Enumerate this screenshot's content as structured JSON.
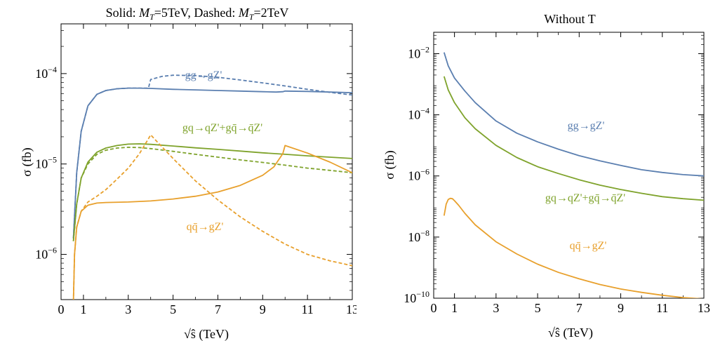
{
  "chart_data": [
    {
      "type": "line",
      "title": "Solid: M_T=5TeV, Dashed: M_T=2TeV",
      "title_parts": [
        "Solid: ",
        "M",
        "T",
        "=5TeV, Dashed: ",
        "M",
        "T",
        "=2TeV"
      ],
      "xlabel": "√ŝ (TeV)",
      "ylabel": "σ (fb)",
      "xlim": [
        0,
        13
      ],
      "ylim_log10": [
        -6.5,
        -3.45
      ],
      "yscale": "log",
      "x_ticks": [
        0,
        1,
        3,
        5,
        7,
        9,
        11,
        13
      ],
      "y_ticks": [
        {
          "exp": -6,
          "label": "10",
          "sup": "−6"
        },
        {
          "exp": -5,
          "label": "10",
          "sup": "−5"
        },
        {
          "exp": -4,
          "label": "10",
          "sup": "−4"
        }
      ],
      "annotations": [
        {
          "series": "gg",
          "text": "gg→gZ'",
          "color": "#5b7fb0"
        },
        {
          "series": "gq",
          "text": "gq→qZ'+gq̄→q̄Z'",
          "color": "#7fa32c"
        },
        {
          "series": "qq",
          "text": "qq̄→gZ'",
          "color": "#e8a02c"
        }
      ],
      "series": [
        {
          "name": "gg→gZ'",
          "style": "solid",
          "color": "#5b7fb0",
          "x": [
            0.55,
            0.7,
            0.9,
            1.2,
            1.6,
            2.0,
            2.5,
            3.0,
            3.5,
            4.0,
            5.0,
            6.0,
            7.0,
            8.0,
            9.0,
            9.6,
            9.9,
            10.0,
            11.0,
            12.0,
            13.0
          ],
          "y": [
            1.5e-06,
            8e-06,
            2.3e-05,
            4.4e-05,
            5.9e-05,
            6.5e-05,
            6.8e-05,
            6.9e-05,
            6.9e-05,
            6.85e-05,
            6.7e-05,
            6.6e-05,
            6.5e-05,
            6.4e-05,
            6.3e-05,
            6.25e-05,
            6.3e-05,
            6.4e-05,
            6.35e-05,
            6.25e-05,
            6.15e-05
          ]
        },
        {
          "name": "gg→gZ'",
          "style": "dashed",
          "color": "#5b7fb0",
          "x": [
            0.55,
            0.7,
            0.9,
            1.2,
            1.6,
            2.0,
            2.5,
            3.0,
            3.5,
            3.9,
            4.0,
            4.5,
            5.0,
            6.0,
            7.0,
            8.0,
            9.0,
            10.0,
            11.0,
            12.0,
            13.0
          ],
          "y": [
            1.5e-06,
            8e-06,
            2.3e-05,
            4.4e-05,
            5.9e-05,
            6.5e-05,
            6.8e-05,
            6.9e-05,
            6.9e-05,
            6.9e-05,
            8.6e-05,
            9.3e-05,
            9.6e-05,
            9.5e-05,
            9.1e-05,
            8.5e-05,
            7.9e-05,
            7.3e-05,
            6.7e-05,
            6.2e-05,
            5.8e-05
          ]
        },
        {
          "name": "gq→qZ'+gq̄→q̄Z'",
          "style": "solid",
          "color": "#7fa32c",
          "x": [
            0.55,
            0.7,
            0.9,
            1.2,
            1.6,
            2.0,
            2.5,
            3.0,
            3.5,
            4.0,
            5.0,
            6.0,
            7.0,
            8.0,
            9.0,
            10.0,
            11.0,
            12.0,
            13.0
          ],
          "y": [
            1.4e-06,
            3.6e-06,
            7e-06,
            1.05e-05,
            1.35e-05,
            1.5e-05,
            1.6e-05,
            1.66e-05,
            1.67e-05,
            1.65e-05,
            1.58e-05,
            1.51e-05,
            1.45e-05,
            1.39e-05,
            1.33e-05,
            1.28e-05,
            1.23e-05,
            1.19e-05,
            1.15e-05
          ]
        },
        {
          "name": "gq→qZ'+gq̄→q̄Z'",
          "style": "dashed",
          "color": "#7fa32c",
          "x": [
            0.55,
            0.7,
            0.9,
            1.2,
            1.6,
            2.0,
            2.5,
            3.0,
            3.5,
            4.0,
            5.0,
            6.0,
            7.0,
            8.0,
            9.0,
            10.0,
            11.0,
            12.0,
            13.0
          ],
          "y": [
            1.4e-06,
            3.6e-06,
            7e-06,
            1e-05,
            1.28e-05,
            1.42e-05,
            1.5e-05,
            1.53e-05,
            1.52e-05,
            1.48e-05,
            1.38e-05,
            1.28e-05,
            1.19e-05,
            1.11e-05,
            1.04e-05,
            9.7e-06,
            9e-06,
            8.5e-06,
            8e-06
          ]
        },
        {
          "name": "qq̄→gZ'",
          "style": "solid",
          "color": "#e8a02c",
          "x": [
            0.55,
            0.6,
            0.7,
            0.9,
            1.2,
            1.6,
            2.0,
            3.0,
            4.0,
            5.0,
            6.0,
            7.0,
            8.0,
            9.0,
            9.5,
            9.9,
            10.0,
            11.0,
            12.0,
            13.0
          ],
          "y": [
            3e-07,
            1e-06,
            2e-06,
            3e-06,
            3.5e-06,
            3.7e-06,
            3.75e-06,
            3.8e-06,
            3.9e-06,
            4.1e-06,
            4.4e-06,
            4.9e-06,
            5.8e-06,
            7.5e-06,
            9.3e-06,
            1.3e-05,
            1.6e-05,
            1.32e-05,
            1.05e-05,
            8e-06
          ]
        },
        {
          "name": "qq̄→gZ'",
          "style": "dashed",
          "color": "#e8a02c",
          "x": [
            0.55,
            0.6,
            0.7,
            0.9,
            1.2,
            1.6,
            2.0,
            2.5,
            3.0,
            3.5,
            3.9,
            4.0,
            4.5,
            5.0,
            6.0,
            7.0,
            8.0,
            9.0,
            10.0,
            11.0,
            12.0,
            13.0
          ],
          "y": [
            3e-07,
            1e-06,
            2e-06,
            3e-06,
            3.8e-06,
            4.4e-06,
            5.2e-06,
            6.8e-06,
            9e-06,
            1.3e-05,
            1.9e-05,
            2.1e-05,
            1.55e-05,
            1.15e-05,
            6.5e-06,
            4e-06,
            2.6e-06,
            1.8e-06,
            1.3e-06,
            1e-06,
            8.5e-07,
            7.5e-07
          ]
        }
      ]
    },
    {
      "type": "line",
      "title": "Without T",
      "xlabel": "√ŝ (TeV)",
      "ylabel": "σ (fb)",
      "xlim": [
        0,
        13
      ],
      "ylim_log10": [
        -10,
        -1.3
      ],
      "yscale": "log",
      "x_ticks": [
        0,
        1,
        3,
        5,
        7,
        9,
        11,
        13
      ],
      "y_ticks": [
        {
          "exp": -10,
          "label": "10",
          "sup": "−10"
        },
        {
          "exp": -8,
          "label": "10",
          "sup": "−8"
        },
        {
          "exp": -6,
          "label": "10",
          "sup": "−6"
        },
        {
          "exp": -4,
          "label": "10",
          "sup": "−4"
        },
        {
          "exp": -2,
          "label": "10",
          "sup": "−2"
        }
      ],
      "annotations": [
        {
          "series": "gg",
          "text": "gg→gZ'",
          "color": "#5b7fb0"
        },
        {
          "series": "gq",
          "text": "gq→qZ'+gq̄→q̄Z'",
          "color": "#7fa32c"
        },
        {
          "series": "qq",
          "text": "qq̄→gZ'",
          "color": "#e8a02c"
        }
      ],
      "series": [
        {
          "name": "gg→gZ'",
          "style": "solid",
          "color": "#5b7fb0",
          "x": [
            0.5,
            0.7,
            1.0,
            1.5,
            2.0,
            3.0,
            4.0,
            5.0,
            6.0,
            7.0,
            8.0,
            9.0,
            10.0,
            11.0,
            12.0,
            13.0
          ],
          "y": [
            0.011,
            0.004,
            0.0016,
            0.0006,
            0.00025,
            6.3e-05,
            2.5e-05,
            1.3e-05,
            7.5e-06,
            4.6e-06,
            3.1e-06,
            2.2e-06,
            1.6e-06,
            1.3e-06,
            1.1e-06,
            1e-06
          ]
        },
        {
          "name": "gq→qZ'+gq̄→q̄Z'",
          "style": "solid",
          "color": "#7fa32c",
          "x": [
            0.5,
            0.7,
            1.0,
            1.5,
            2.0,
            3.0,
            4.0,
            5.0,
            6.0,
            7.0,
            8.0,
            9.0,
            10.0,
            11.0,
            12.0,
            13.0
          ],
          "y": [
            0.0018,
            0.00065,
            0.00025,
            8e-05,
            3.5e-05,
            1e-05,
            4e-06,
            2e-06,
            1.2e-06,
            7.5e-07,
            5e-07,
            3.6e-07,
            2.7e-07,
            2.1e-07,
            1.8e-07,
            1.6e-07
          ]
        },
        {
          "name": "qq̄→gZ'",
          "style": "solid",
          "color": "#e8a02c",
          "x": [
            0.5,
            0.6,
            0.7,
            0.8,
            0.9,
            1.0,
            1.2,
            1.5,
            2.0,
            3.0,
            4.0,
            5.0,
            6.0,
            7.0,
            8.0,
            9.0,
            10.0,
            11.0,
            12.0,
            13.0
          ],
          "y": [
            5e-08,
            1.2e-07,
            1.7e-07,
            1.85e-07,
            1.8e-07,
            1.55e-07,
            1.1e-07,
            6e-08,
            2.5e-08,
            7e-09,
            2.8e-09,
            1.3e-09,
            7e-10,
            4.3e-10,
            2.8e-10,
            2e-10,
            1.55e-10,
            1.25e-10,
            1.05e-10,
            9.5e-11
          ]
        }
      ]
    }
  ]
}
